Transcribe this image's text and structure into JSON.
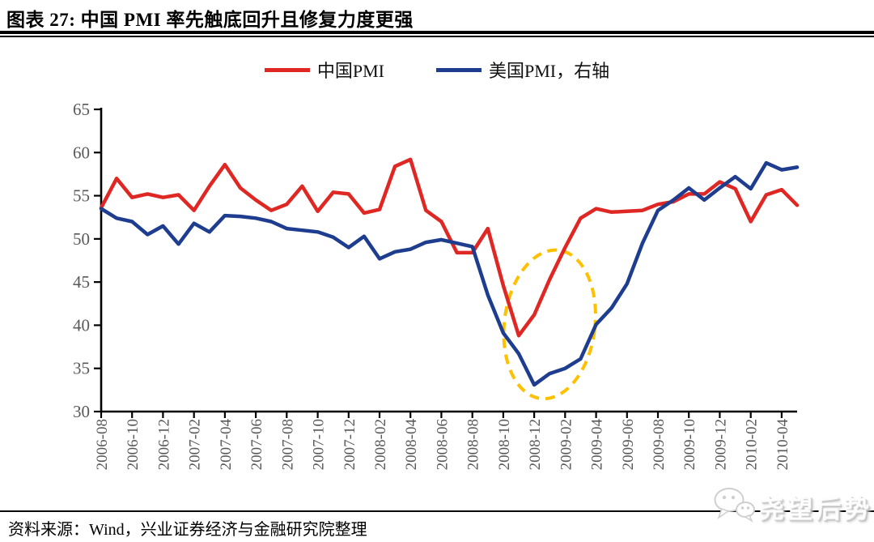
{
  "header": {
    "title": "图表 27:  中国 PMI 率先触底回升且修复力度更强"
  },
  "legend": [
    {
      "label": "中国PMI",
      "color": "#df2724"
    },
    {
      "label": "美国PMI，右轴",
      "color": "#1e3d8f"
    }
  ],
  "chart_data": {
    "type": "line",
    "months": [
      "2006-08",
      "2006-09",
      "2006-10",
      "2006-11",
      "2006-12",
      "2007-01",
      "2007-02",
      "2007-03",
      "2007-04",
      "2007-05",
      "2007-06",
      "2007-07",
      "2007-08",
      "2007-09",
      "2007-10",
      "2007-11",
      "2007-12",
      "2008-01",
      "2008-02",
      "2008-03",
      "2008-04",
      "2008-05",
      "2008-06",
      "2008-07",
      "2008-08",
      "2008-09",
      "2008-10",
      "2008-11",
      "2008-12",
      "2009-01",
      "2009-02",
      "2009-03",
      "2009-04",
      "2009-05",
      "2009-06",
      "2009-07",
      "2009-08",
      "2009-09",
      "2009-10",
      "2009-11",
      "2009-12",
      "2010-01",
      "2010-02",
      "2010-03",
      "2010-04",
      "2010-05"
    ],
    "xtick_every": 2,
    "ylim": [
      30,
      65
    ],
    "ytick_step": 5,
    "grid": false,
    "legend_position": "top-center",
    "series": [
      {
        "name": "中国PMI",
        "color": "#df2724",
        "values": [
          53.6,
          57.0,
          54.8,
          55.2,
          54.8,
          55.1,
          53.3,
          56.1,
          58.6,
          55.9,
          54.5,
          53.3,
          54.0,
          56.1,
          53.2,
          55.4,
          55.2,
          53.0,
          53.4,
          58.4,
          59.2,
          53.3,
          52.0,
          48.4,
          48.4,
          51.2,
          44.6,
          38.8,
          41.2,
          45.3,
          49.0,
          52.4,
          53.5,
          53.1,
          53.2,
          53.3,
          54.0,
          54.3,
          55.2,
          55.2,
          56.6,
          55.8,
          52.0,
          55.1,
          55.7,
          53.9
        ]
      },
      {
        "name": "美国PMI，右轴",
        "color": "#1e3d8f",
        "values": [
          53.5,
          52.4,
          52.0,
          50.5,
          51.5,
          49.4,
          51.8,
          50.8,
          52.7,
          52.6,
          52.4,
          52.0,
          51.2,
          51.0,
          50.8,
          50.2,
          49.0,
          50.3,
          47.7,
          48.5,
          48.8,
          49.6,
          49.9,
          49.5,
          49.1,
          43.5,
          39.1,
          36.7,
          33.1,
          34.4,
          35.0,
          36.1,
          40.1,
          42.0,
          44.8,
          49.5,
          53.3,
          54.5,
          55.9,
          54.5,
          55.9,
          57.2,
          55.8,
          58.8,
          58.0,
          58.3
        ]
      }
    ],
    "annotation": {
      "shape": "dashed-ellipse",
      "purpose": "highlights PMI trough area around 2008-12 / 2009-02",
      "color": "#ffc000",
      "center_index": 29,
      "center_value": 40.1,
      "rx_months": 2.93,
      "ry_values": 8.65,
      "rotate_deg": 7
    }
  },
  "footer": {
    "source": "资料来源：Wind，兴业证券经济与金融研究院整理",
    "watermark": "尧望后势"
  }
}
